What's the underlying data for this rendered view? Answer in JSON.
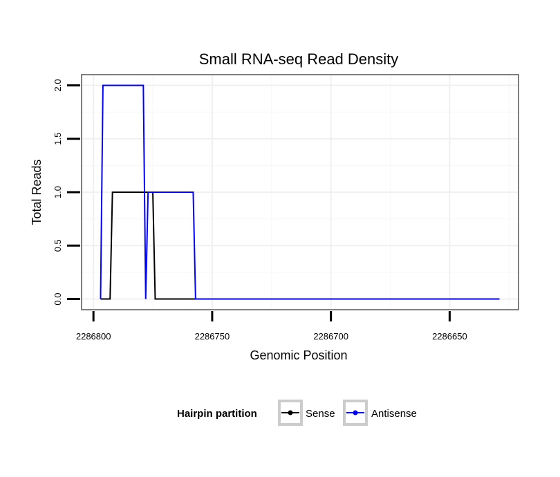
{
  "chart_data": {
    "type": "line",
    "title": "Small RNA-seq Read Density",
    "xlabel": "Genomic Position",
    "ylabel": "Total Reads",
    "xlim": [
      2286805,
      2286621
    ],
    "ylim": [
      -0.1,
      2.1
    ],
    "x_reversed": true,
    "x_ticks": [
      2286800,
      2286750,
      2286700,
      2286650
    ],
    "x_tick_labels": [
      "2286800",
      "2286750",
      "2286700",
      "2286650"
    ],
    "y_ticks": [
      0.0,
      0.5,
      1.0,
      1.5,
      2.0
    ],
    "y_tick_labels": [
      "0.0",
      "0.5",
      "1.0",
      "1.5",
      "2.0"
    ],
    "grid": true,
    "legend": {
      "title": "Hairpin partition",
      "position": "bottom"
    },
    "series": [
      {
        "name": "Sense",
        "color": "#000000",
        "x": [
          2286797,
          2286793,
          2286792,
          2286775,
          2286774,
          2286629
        ],
        "y": [
          0,
          0,
          1,
          1,
          0,
          0
        ]
      },
      {
        "name": "Antisense",
        "color": "#0000ff",
        "x": [
          2286797,
          2286796,
          2286779,
          2286778,
          2286777,
          2286758,
          2286757,
          2286629
        ],
        "y": [
          0,
          2,
          2,
          0,
          1,
          1,
          0,
          0
        ]
      }
    ]
  }
}
